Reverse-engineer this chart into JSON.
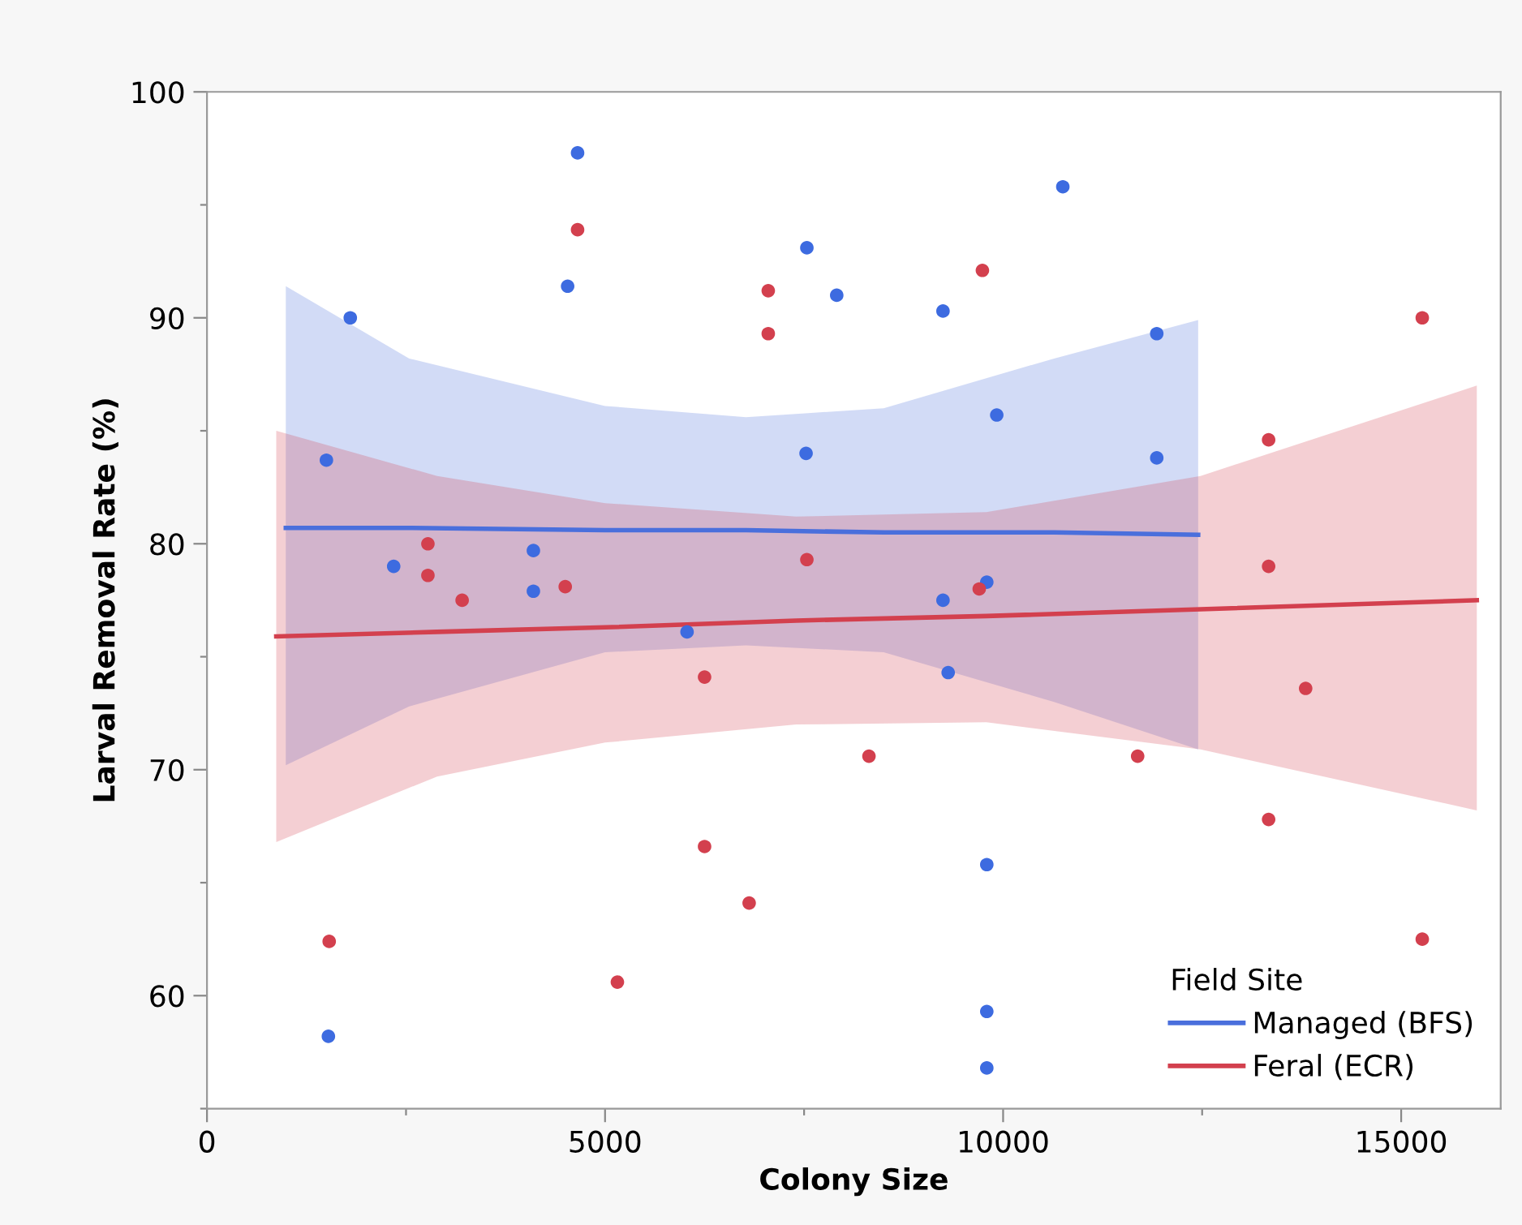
{
  "chart_data": {
    "type": "scatter",
    "xlabel": "Colony Size",
    "ylabel": "Larval Removal Rate (%)",
    "legend_title": "Field Site",
    "legend": "bottom right",
    "grid": false,
    "marker": "circle",
    "xlim": [
      0,
      16250
    ],
    "ylim": [
      55,
      100
    ],
    "xticks": [
      0,
      {
        "value": 2500,
        "label": null
      },
      5000,
      {
        "value": 7500,
        "label": null
      },
      10000,
      {
        "value": 12500,
        "label": null
      },
      15000
    ],
    "yticks": [
      {
        "value": 55,
        "label": null
      },
      60,
      {
        "value": 65,
        "label": null
      },
      70,
      {
        "value": 75,
        "label": null
      },
      80,
      {
        "value": 85,
        "label": null
      },
      90,
      {
        "value": 95,
        "label": null
      },
      100
    ],
    "series": [
      {
        "type": "line",
        "name": "Managed (BFS)",
        "color": "#4a6fdc",
        "marker": "none",
        "x": [
          990,
          2540,
          5000,
          6770,
          8500,
          10640,
          12450
        ],
        "values": [
          80.7,
          80.7,
          80.6,
          80.6,
          80.5,
          80.5,
          80.4
        ],
        "upper": [
          91.4,
          88.2,
          86.1,
          85.6,
          86.0,
          88.2,
          89.9
        ],
        "lower": [
          70.2,
          72.8,
          75.2,
          75.5,
          75.2,
          73.0,
          70.9
        ]
      },
      {
        "type": "line",
        "name": "Feral (ECR)",
        "color": "#d3404e",
        "marker": "none",
        "x": [
          870,
          2890,
          5000,
          7400,
          9790,
          12480,
          15950
        ],
        "values": [
          75.9,
          76.1,
          76.3,
          76.6,
          76.8,
          77.1,
          77.5
        ],
        "upper": [
          85.0,
          83.0,
          81.8,
          81.2,
          81.4,
          83.0,
          87.0
        ],
        "lower": [
          66.8,
          69.7,
          71.2,
          72.0,
          72.1,
          70.9,
          68.2
        ]
      },
      {
        "color": "#3d6be0",
        "x": [
          1800,
          1500,
          2345,
          4100,
          4100,
          4530,
          4655,
          6030,
          1525,
          7535,
          7910,
          7525,
          9245,
          10750,
          11930,
          11930,
          9920,
          9795,
          9245,
          9310,
          9795,
          9795,
          9795
        ],
        "values": [
          90.0,
          83.7,
          79.0,
          79.7,
          77.9,
          91.4,
          97.3,
          76.1,
          58.2,
          93.1,
          91.0,
          84.0,
          90.3,
          95.8,
          89.3,
          83.8,
          85.7,
          78.3,
          77.5,
          74.3,
          65.8,
          59.3,
          56.8
        ]
      },
      {
        "color": "#d3404e",
        "x": [
          1535,
          2775,
          2775,
          3205,
          4500,
          4655,
          5155,
          6250,
          6250,
          6810,
          7050,
          7050,
          9740,
          7535,
          9700,
          8315,
          11690,
          13335,
          13335,
          13800,
          13335,
          15265,
          15265
        ],
        "values": [
          62.4,
          80.0,
          78.6,
          77.5,
          78.1,
          93.9,
          60.6,
          74.1,
          66.6,
          64.1,
          91.2,
          89.3,
          92.1,
          79.3,
          78.0,
          70.6,
          70.6,
          84.6,
          79.0,
          73.6,
          67.8,
          90.0,
          62.5
        ]
      }
    ]
  }
}
